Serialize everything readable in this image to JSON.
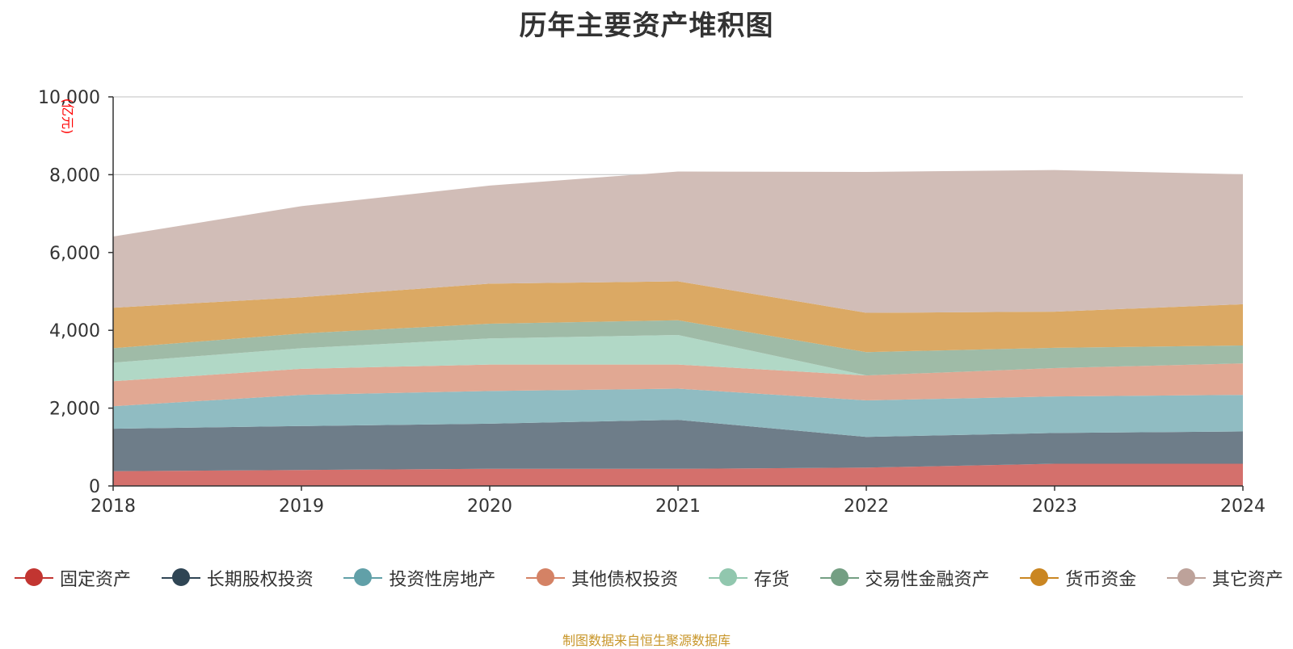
{
  "chart_data": {
    "type": "area",
    "stacked": true,
    "title": "历年主要资产堆积图",
    "ylabel": "(亿元)",
    "ylim": [
      0,
      10000
    ],
    "yticks": [
      "0",
      "2,000",
      "4,000",
      "6,000",
      "8,000",
      "10,000"
    ],
    "ytick_values": [
      0,
      2000,
      4000,
      6000,
      8000,
      10000
    ],
    "x": [
      "2018",
      "2019",
      "2020",
      "2021",
      "2022",
      "2023",
      "2024"
    ],
    "grid": true,
    "legend_position": "bottom",
    "series": [
      {
        "name": "固定资产",
        "color": "#c23531",
        "fill": "#d4706c",
        "values": [
          380,
          410,
          440,
          440,
          470,
          570,
          570
        ]
      },
      {
        "name": "长期股权投资",
        "color": "#2f4554",
        "fill": "#6e7d89",
        "values": [
          1090,
          1130,
          1160,
          1260,
          790,
          790,
          830
        ]
      },
      {
        "name": "投资性房地产",
        "color": "#61a0a8",
        "fill": "#90bcc2",
        "values": [
          580,
          800,
          840,
          800,
          940,
          940,
          940
        ]
      },
      {
        "name": "其他债权投资",
        "color": "#d48265",
        "fill": "#e1a893",
        "values": [
          640,
          670,
          680,
          620,
          640,
          730,
          810
        ]
      },
      {
        "name": "存货",
        "color": "#91c7ae",
        "fill": "#b1d8c6",
        "values": [
          480,
          530,
          670,
          760,
          0,
          0,
          0
        ]
      },
      {
        "name": "交易性金融资产",
        "color": "#749f83",
        "fill": "#9fbba7",
        "values": [
          370,
          380,
          380,
          380,
          600,
          520,
          460
        ]
      },
      {
        "name": "货币资金",
        "color": "#ca8622",
        "fill": "#dba964",
        "values": [
          1040,
          930,
          1030,
          1000,
          1010,
          930,
          1060
        ]
      },
      {
        "name": "其它资产",
        "color": "#bda29a",
        "fill": "#d1bdb7",
        "values": [
          1830,
          2340,
          2520,
          2820,
          3620,
          3640,
          3340
        ]
      }
    ]
  },
  "footer": {
    "source": "制图数据来自恒生聚源数据库"
  }
}
